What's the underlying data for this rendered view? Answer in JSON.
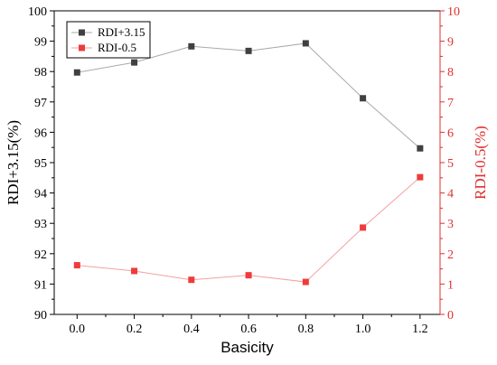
{
  "chart_data": {
    "type": "line",
    "xlabel": "Basicity",
    "ylabel_left": "RDI+3.15(%)",
    "ylabel_right": "RDI-0.5(%)",
    "x": [
      0.0,
      0.2,
      0.4,
      0.6,
      0.8,
      1.0,
      1.2
    ],
    "x_ticks": [
      "0.0",
      "0.2",
      "0.4",
      "0.6",
      "0.8",
      "1.0",
      "1.2"
    ],
    "xlim": [
      -0.08,
      1.27
    ],
    "ylim_left": [
      90,
      100
    ],
    "ylim_right": [
      0,
      10
    ],
    "y_ticks_left": [
      "90",
      "91",
      "92",
      "93",
      "94",
      "95",
      "96",
      "97",
      "98",
      "99",
      "100"
    ],
    "y_ticks_right": [
      "0",
      "1",
      "2",
      "3",
      "4",
      "5",
      "6",
      "7",
      "8",
      "9",
      "10"
    ],
    "legend_position": "top-left",
    "grid": false,
    "series": [
      {
        "name": "RDI+3.15",
        "axis": "left",
        "color": "#404040",
        "line_color": "#a9a9a9",
        "marker": "square",
        "values": [
          97.97,
          98.3,
          98.83,
          98.68,
          98.93,
          97.12,
          95.47
        ]
      },
      {
        "name": "RDI-0.5",
        "axis": "right",
        "color": "#ef3b3b",
        "line_color": "#f5a0a0",
        "marker": "square",
        "values": [
          1.62,
          1.43,
          1.14,
          1.29,
          1.07,
          2.86,
          4.52
        ]
      }
    ],
    "colors": {
      "left_axis": "#000000",
      "right_axis": "#e03030"
    }
  }
}
